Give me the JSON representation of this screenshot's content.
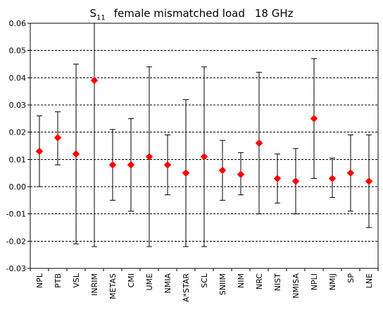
{
  "chart_data": {
    "type": "scatter",
    "title": {
      "symbol": "S",
      "subscript": "11",
      "text": "female mismatched load",
      "frequency": "18 GHz"
    },
    "xlabel": "",
    "ylabel": "",
    "ylim": [
      -0.03,
      0.06
    ],
    "ytick_labels": [
      "0.06",
      "0.05",
      "0.04",
      "0.03",
      "0.02",
      "0.01",
      "0.00",
      "-0.01",
      "-0.02",
      "-0.03"
    ],
    "gridlines": "horizontal dashed",
    "marker_color": "#ff0000",
    "marker_shape": "diamond",
    "errorbar_color": "#000000",
    "categories": [
      "NPL",
      "PTB",
      "VSL",
      "INRIM",
      "METAS",
      "CMI",
      "UME",
      "NMIA",
      "A*STAR",
      "SCL",
      "SNIIM",
      "NIM",
      "NRC",
      "NIST",
      "NMISA",
      "NPLI",
      "NMIJ",
      "SP",
      "LNE"
    ],
    "values": [
      0.013,
      0.018,
      0.012,
      0.039,
      0.008,
      0.008,
      0.011,
      0.008,
      0.005,
      0.011,
      0.006,
      0.0045,
      0.016,
      0.003,
      0.002,
      0.025,
      0.003,
      0.005,
      0.002
    ],
    "error_low": [
      0.0,
      0.008,
      -0.021,
      -0.022,
      -0.005,
      -0.009,
      -0.022,
      -0.003,
      -0.022,
      -0.022,
      -0.005,
      -0.003,
      -0.01,
      -0.006,
      -0.01,
      0.003,
      -0.004,
      -0.009,
      -0.015
    ],
    "error_high": [
      0.026,
      0.0275,
      0.045,
      0.06,
      0.021,
      0.025,
      0.044,
      0.019,
      0.032,
      0.044,
      0.017,
      0.0125,
      0.042,
      0.012,
      0.014,
      0.047,
      0.0105,
      0.019,
      0.019
    ]
  }
}
